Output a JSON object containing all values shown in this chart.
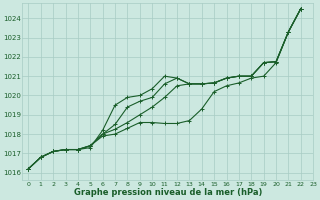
{
  "bg_color": "#cce8e0",
  "grid_color": "#a8ccc4",
  "line_color": "#1a5e2a",
  "text_color": "#1a5e2a",
  "xlabel": "Graphe pression niveau de la mer (hPa)",
  "xlim": [
    -0.5,
    23
  ],
  "ylim": [
    1015.6,
    1024.8
  ],
  "yticks": [
    1016,
    1017,
    1018,
    1019,
    1020,
    1021,
    1022,
    1023,
    1024
  ],
  "xticks": [
    0,
    1,
    2,
    3,
    4,
    5,
    6,
    7,
    8,
    9,
    10,
    11,
    12,
    13,
    14,
    15,
    16,
    17,
    18,
    19,
    20,
    21,
    22,
    23
  ],
  "series": [
    {
      "x": [
        0,
        1,
        2,
        3,
        4,
        5,
        6,
        7,
        8,
        9,
        10,
        11,
        12,
        13,
        14,
        15,
        16,
        17,
        18,
        19,
        20,
        21,
        22
      ],
      "y": [
        1016.2,
        1016.8,
        1017.1,
        1017.2,
        1017.2,
        1017.3,
        1018.2,
        1019.5,
        1019.9,
        1020.0,
        1020.35,
        1021.0,
        1020.9,
        1020.6,
        1020.6,
        1020.65,
        1020.9,
        1021.0,
        1021.0,
        1021.7,
        1021.75,
        1023.3,
        1024.5
      ]
    },
    {
      "x": [
        0,
        1,
        2,
        3,
        4,
        5,
        6,
        7,
        8,
        9,
        10,
        11,
        12,
        13,
        14,
        15,
        16,
        17,
        18,
        19,
        20,
        21,
        22
      ],
      "y": [
        1016.2,
        1016.8,
        1017.1,
        1017.2,
        1017.2,
        1017.4,
        1017.9,
        1018.0,
        1018.3,
        1018.6,
        1018.6,
        1018.55,
        1018.55,
        1018.7,
        1019.3,
        1020.2,
        1020.5,
        1020.65,
        1020.9,
        1021.0,
        1021.7,
        1023.3,
        1024.5
      ]
    },
    {
      "x": [
        0,
        1,
        2,
        3,
        4,
        5,
        6,
        7,
        8,
        9,
        10,
        11,
        12,
        13,
        14,
        15,
        16,
        17,
        18,
        19,
        20,
        21,
        22
      ],
      "y": [
        1016.2,
        1016.8,
        1017.1,
        1017.2,
        1017.2,
        1017.4,
        1018.0,
        1018.5,
        1019.4,
        1019.7,
        1019.9,
        1020.6,
        1020.9,
        1020.6,
        1020.6,
        1020.65,
        1020.9,
        1021.0,
        1021.0,
        1021.7,
        1021.75,
        1023.3,
        1024.5
      ]
    },
    {
      "x": [
        0,
        1,
        2,
        3,
        4,
        5,
        6,
        7,
        8,
        9,
        10,
        11,
        12,
        13,
        14,
        15,
        16,
        17,
        18,
        19,
        20,
        21,
        22
      ],
      "y": [
        1016.2,
        1016.8,
        1017.1,
        1017.2,
        1017.2,
        1017.4,
        1018.0,
        1018.25,
        1018.6,
        1019.0,
        1019.4,
        1019.9,
        1020.5,
        1020.6,
        1020.6,
        1020.65,
        1020.9,
        1021.0,
        1021.0,
        1021.7,
        1021.75,
        1023.3,
        1024.5
      ]
    }
  ]
}
